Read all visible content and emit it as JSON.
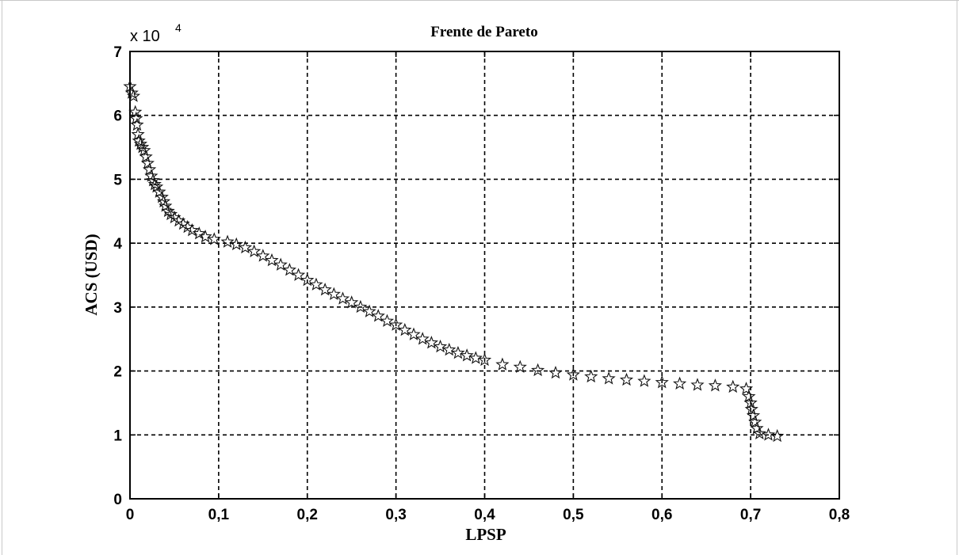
{
  "chart_data": {
    "type": "scatter",
    "title": "Frente de Pareto",
    "xlabel": "LPSP",
    "ylabel": "ACS (USD)",
    "y_multiplier": {
      "base": "x 10",
      "exponent": "4"
    },
    "xlim": [
      0,
      0.8
    ],
    "ylim": [
      0,
      7
    ],
    "x_ticks": [
      0,
      0.1,
      0.2,
      0.3,
      0.4,
      0.5,
      0.6,
      0.7,
      0.8
    ],
    "x_tick_labels": [
      "0",
      "0,1",
      "0,2",
      "0,3",
      "0,4",
      "0,5",
      "0,6",
      "0,7",
      "0,8"
    ],
    "y_ticks": [
      0,
      1,
      2,
      3,
      4,
      5,
      6,
      7
    ],
    "y_tick_labels": [
      "0",
      "1",
      "2",
      "3",
      "4",
      "5",
      "6",
      "7"
    ],
    "grid": true,
    "marker": "star",
    "points": [
      [
        0.0,
        6.45
      ],
      [
        0.002,
        6.35
      ],
      [
        0.004,
        6.3
      ],
      [
        0.006,
        6.05
      ],
      [
        0.007,
        5.95
      ],
      [
        0.008,
        5.85
      ],
      [
        0.009,
        5.7
      ],
      [
        0.01,
        5.6
      ],
      [
        0.012,
        5.55
      ],
      [
        0.014,
        5.5
      ],
      [
        0.016,
        5.45
      ],
      [
        0.018,
        5.35
      ],
      [
        0.02,
        5.25
      ],
      [
        0.022,
        5.15
      ],
      [
        0.024,
        5.05
      ],
      [
        0.026,
        4.98
      ],
      [
        0.028,
        4.92
      ],
      [
        0.03,
        4.88
      ],
      [
        0.033,
        4.8
      ],
      [
        0.036,
        4.72
      ],
      [
        0.038,
        4.65
      ],
      [
        0.04,
        4.58
      ],
      [
        0.043,
        4.5
      ],
      [
        0.046,
        4.45
      ],
      [
        0.05,
        4.4
      ],
      [
        0.055,
        4.35
      ],
      [
        0.06,
        4.3
      ],
      [
        0.065,
        4.25
      ],
      [
        0.07,
        4.2
      ],
      [
        0.078,
        4.15
      ],
      [
        0.085,
        4.1
      ],
      [
        0.095,
        4.06
      ],
      [
        0.11,
        4.02
      ],
      [
        0.12,
        3.98
      ],
      [
        0.13,
        3.93
      ],
      [
        0.14,
        3.87
      ],
      [
        0.15,
        3.8
      ],
      [
        0.16,
        3.73
      ],
      [
        0.17,
        3.66
      ],
      [
        0.18,
        3.58
      ],
      [
        0.19,
        3.5
      ],
      [
        0.2,
        3.42
      ],
      [
        0.21,
        3.35
      ],
      [
        0.22,
        3.27
      ],
      [
        0.23,
        3.2
      ],
      [
        0.24,
        3.13
      ],
      [
        0.25,
        3.07
      ],
      [
        0.26,
        3.0
      ],
      [
        0.27,
        2.93
      ],
      [
        0.28,
        2.86
      ],
      [
        0.29,
        2.78
      ],
      [
        0.3,
        2.72
      ],
      [
        0.31,
        2.64
      ],
      [
        0.32,
        2.57
      ],
      [
        0.33,
        2.5
      ],
      [
        0.34,
        2.44
      ],
      [
        0.35,
        2.38
      ],
      [
        0.36,
        2.33
      ],
      [
        0.37,
        2.28
      ],
      [
        0.38,
        2.24
      ],
      [
        0.39,
        2.2
      ],
      [
        0.4,
        2.17
      ],
      [
        0.42,
        2.1
      ],
      [
        0.44,
        2.06
      ],
      [
        0.46,
        2.01
      ],
      [
        0.48,
        1.97
      ],
      [
        0.5,
        1.94
      ],
      [
        0.52,
        1.91
      ],
      [
        0.54,
        1.88
      ],
      [
        0.56,
        1.86
      ],
      [
        0.58,
        1.84
      ],
      [
        0.6,
        1.82
      ],
      [
        0.62,
        1.8
      ],
      [
        0.64,
        1.78
      ],
      [
        0.66,
        1.77
      ],
      [
        0.68,
        1.75
      ],
      [
        0.695,
        1.72
      ],
      [
        0.698,
        1.6
      ],
      [
        0.7,
        1.5
      ],
      [
        0.701,
        1.4
      ],
      [
        0.703,
        1.3
      ],
      [
        0.705,
        1.2
      ],
      [
        0.707,
        1.1
      ],
      [
        0.71,
        1.02
      ],
      [
        0.72,
        1.0
      ],
      [
        0.73,
        0.98
      ]
    ]
  }
}
